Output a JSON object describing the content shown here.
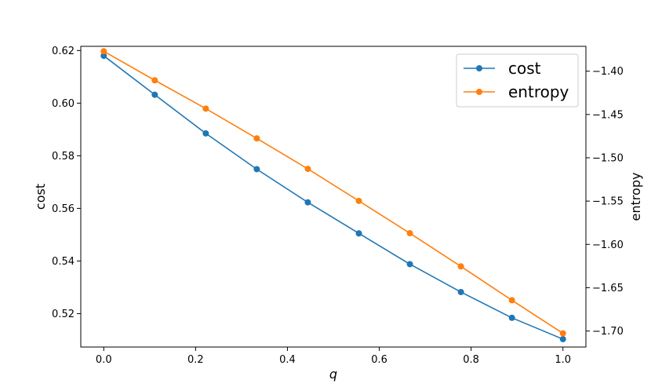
{
  "chart_data": {
    "type": "line",
    "title": "",
    "xlabel": "q",
    "ylabel": "cost",
    "ylabel_right": "entropy",
    "xlim": [
      -0.05,
      1.05
    ],
    "ylim": [
      0.5073,
      0.6216
    ],
    "ylim_right": [
      -1.7185,
      -1.3713
    ],
    "xticks": [
      0.0,
      0.2,
      0.4,
      0.6,
      0.8,
      1.0
    ],
    "xtick_labels": [
      "0.0",
      "0.2",
      "0.4",
      "0.6",
      "0.8",
      "1.0"
    ],
    "yticks": [
      0.52,
      0.54,
      0.56,
      0.58,
      0.6,
      0.62
    ],
    "ytick_labels": [
      "0.52",
      "0.54",
      "0.56",
      "0.58",
      "0.60",
      "0.62"
    ],
    "yticks_right": [
      -1.7,
      -1.65,
      -1.6,
      -1.55,
      -1.5,
      -1.45,
      -1.4
    ],
    "ytick_labels_right": [
      "−1.70",
      "−1.65",
      "−1.60",
      "−1.55",
      "−1.50",
      "−1.45",
      "−1.40"
    ],
    "grid": false,
    "legend_position": "top-right",
    "x": [
      0.0,
      0.1111,
      0.2222,
      0.3333,
      0.4444,
      0.5556,
      0.6667,
      0.7778,
      0.8889,
      1.0
    ],
    "series": [
      {
        "name": "cost",
        "axis": "left",
        "color": "#1f77b4",
        "values": [
          0.618,
          0.6032,
          0.5885,
          0.5749,
          0.5623,
          0.5505,
          0.5388,
          0.5282,
          0.5184,
          0.5103
        ]
      },
      {
        "name": "entropy",
        "axis": "right",
        "color": "#ff7f0e",
        "values": [
          -1.377,
          -1.4105,
          -1.4432,
          -1.4776,
          -1.5128,
          -1.5498,
          -1.5871,
          -1.6254,
          -1.6645,
          -1.7027
        ]
      }
    ]
  }
}
